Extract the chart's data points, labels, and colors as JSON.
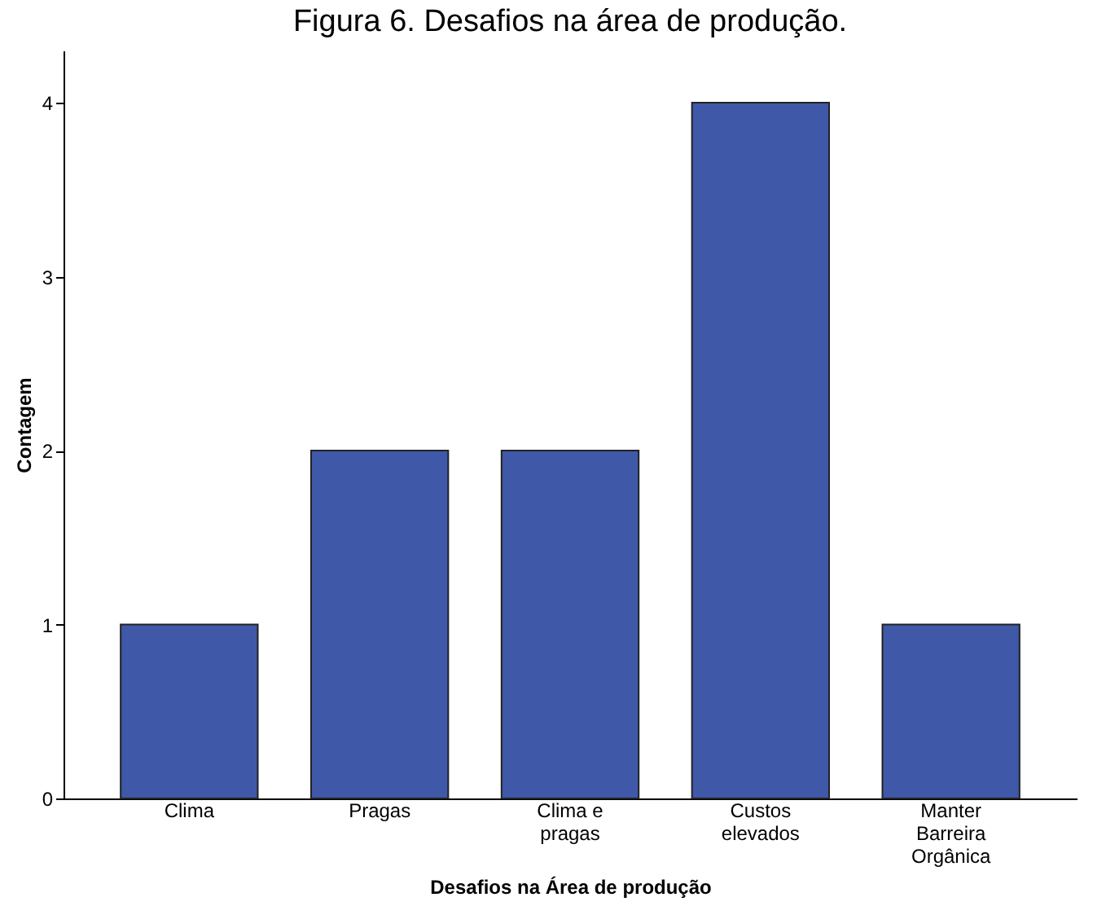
{
  "chart_data": {
    "type": "bar",
    "title": "Figura 6. Desafios na área de produção.",
    "xlabel": "Desafios na Área de produção",
    "ylabel": "Contagem",
    "categories": [
      "Clima",
      "Pragas",
      "Clima e pragas",
      "Custos elevados",
      "Manter Barreira Orgânica"
    ],
    "values": [
      1,
      2,
      2,
      4,
      1
    ],
    "color": "#3f58a8",
    "ylim": [
      0,
      4.3
    ],
    "yticks": [
      0,
      1,
      2,
      3,
      4
    ],
    "grid": false
  }
}
